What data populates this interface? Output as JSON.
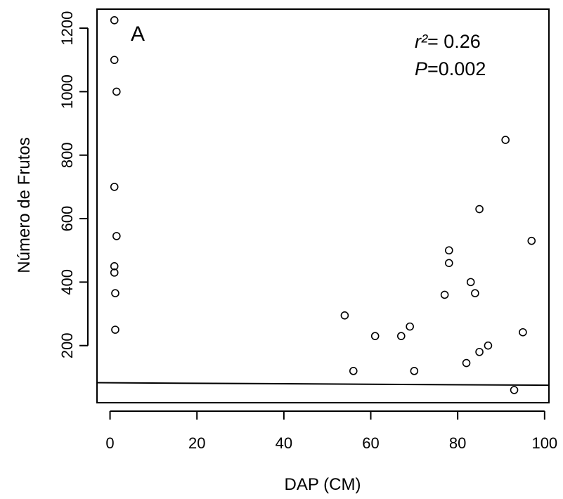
{
  "chart_data": {
    "type": "scatter",
    "panel_label": "A",
    "xlabel": "DAP (CM)",
    "ylabel": "Número de Frutos",
    "xlim": [
      -3,
      101
    ],
    "ylim": [
      20,
      1260
    ],
    "xticks": [
      0,
      20,
      40,
      60,
      80,
      100
    ],
    "yticks": [
      200,
      400,
      600,
      800,
      1000,
      1200
    ],
    "annotation": {
      "r2_symbol": "r²",
      "r2_value": "= 0.26",
      "p_symbol": "P",
      "p_value": "=0.002"
    },
    "points": [
      {
        "x": 1,
        "y": 1225
      },
      {
        "x": 1,
        "y": 1100
      },
      {
        "x": 1.5,
        "y": 1000
      },
      {
        "x": 1,
        "y": 700
      },
      {
        "x": 1.5,
        "y": 545
      },
      {
        "x": 1,
        "y": 450
      },
      {
        "x": 1,
        "y": 430
      },
      {
        "x": 1.2,
        "y": 365
      },
      {
        "x": 1.2,
        "y": 250
      },
      {
        "x": 54,
        "y": 295
      },
      {
        "x": 56,
        "y": 120
      },
      {
        "x": 61,
        "y": 230
      },
      {
        "x": 67,
        "y": 230
      },
      {
        "x": 69,
        "y": 260
      },
      {
        "x": 70,
        "y": 120
      },
      {
        "x": 77,
        "y": 360
      },
      {
        "x": 78,
        "y": 500
      },
      {
        "x": 78,
        "y": 460
      },
      {
        "x": 82,
        "y": 145
      },
      {
        "x": 83,
        "y": 400
      },
      {
        "x": 84,
        "y": 365
      },
      {
        "x": 85,
        "y": 630
      },
      {
        "x": 85,
        "y": 180
      },
      {
        "x": 87,
        "y": 200
      },
      {
        "x": 91,
        "y": 848
      },
      {
        "x": 93,
        "y": 60
      },
      {
        "x": 95,
        "y": 242
      },
      {
        "x": 97,
        "y": 530
      }
    ],
    "trend_line": {
      "x": [
        -3,
        101
      ],
      "y": [
        83,
        75
      ]
    }
  }
}
